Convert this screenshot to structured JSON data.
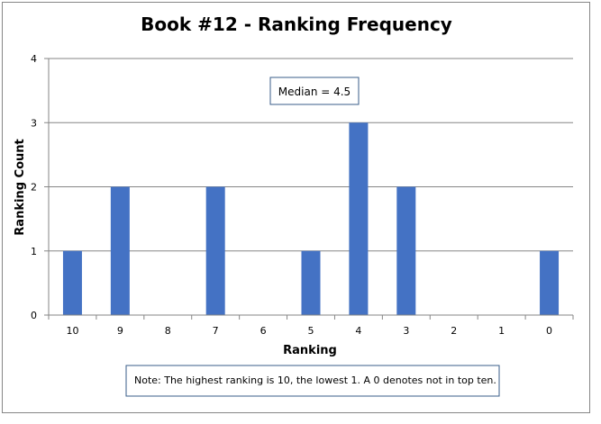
{
  "chart_data": {
    "type": "bar",
    "title": "Book #12 - Ranking Frequency",
    "xlabel": "Ranking",
    "ylabel": "Ranking Count",
    "categories": [
      "10",
      "9",
      "8",
      "7",
      "6",
      "5",
      "4",
      "3",
      "2",
      "1",
      "0"
    ],
    "values": [
      1,
      2,
      0,
      2,
      0,
      1,
      3,
      2,
      0,
      0,
      1
    ],
    "ylim": [
      0,
      4
    ],
    "yticks": [
      "0",
      "1",
      "2",
      "3",
      "4"
    ],
    "grid": "horizontal",
    "legend": "none",
    "bar_color": "#4472C4",
    "annotations": {
      "median": "Median = 4.5",
      "note": "Note: The highest ranking is 10, the lowest 1. A 0 denotes not in top ten."
    }
  }
}
